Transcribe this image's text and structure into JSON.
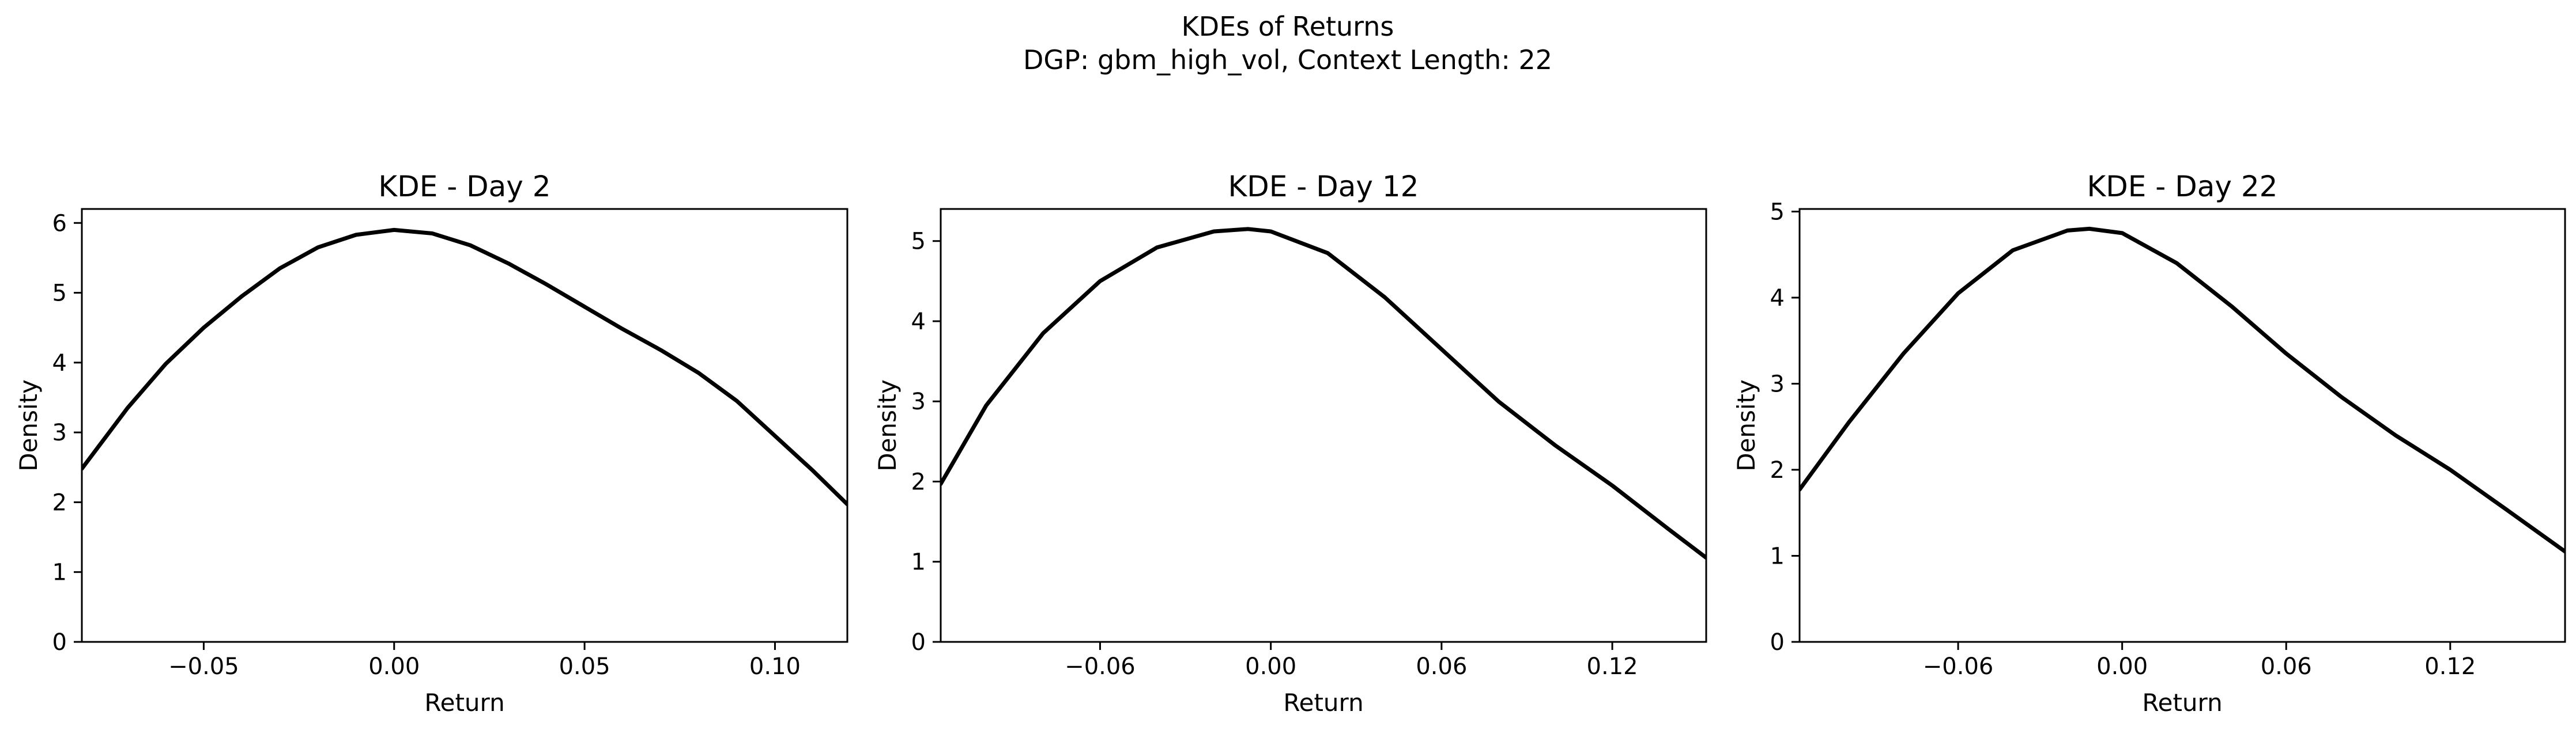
{
  "figure": {
    "suptitle_line1": "KDEs of Returns",
    "suptitle_line2": "DGP: gbm_high_vol, Context Length: 22"
  },
  "chart_data": [
    {
      "type": "line",
      "title": "KDE - Day 2",
      "xlabel": "Return",
      "ylabel": "Density",
      "xlim": [
        -0.082,
        0.119
      ],
      "ylim": [
        0,
        6.2
      ],
      "xticks": [
        -0.05,
        0.0,
        0.05,
        0.1
      ],
      "xtick_labels": [
        "−0.05",
        "0.00",
        "0.05",
        "0.10"
      ],
      "yticks": [
        0,
        1,
        2,
        3,
        4,
        5,
        6
      ],
      "ytick_labels": [
        "0",
        "1",
        "2",
        "3",
        "4",
        "5",
        "6"
      ],
      "grid": false,
      "line_color": "#000000",
      "series": [
        {
          "x": [
            -0.082,
            -0.07,
            -0.06,
            -0.05,
            -0.04,
            -0.03,
            -0.02,
            -0.01,
            0.0,
            0.01,
            0.02,
            0.03,
            0.04,
            0.05,
            0.06,
            0.07,
            0.08,
            0.09,
            0.1,
            0.11,
            0.119
          ],
          "y": [
            2.48,
            3.35,
            3.98,
            4.5,
            4.95,
            5.35,
            5.65,
            5.83,
            5.9,
            5.85,
            5.68,
            5.42,
            5.12,
            4.8,
            4.48,
            4.18,
            3.85,
            3.45,
            2.95,
            2.45,
            1.97
          ]
        }
      ]
    },
    {
      "type": "line",
      "title": "KDE - Day 12",
      "xlabel": "Return",
      "ylabel": "Density",
      "xlim": [
        -0.116,
        0.153
      ],
      "ylim": [
        0,
        5.4
      ],
      "xticks": [
        -0.06,
        0.0,
        0.06,
        0.12
      ],
      "xtick_labels": [
        "−0.06",
        "0.00",
        "0.06",
        "0.12"
      ],
      "yticks": [
        0,
        1,
        2,
        3,
        4,
        5
      ],
      "ytick_labels": [
        "0",
        "1",
        "2",
        "3",
        "4",
        "5"
      ],
      "grid": false,
      "line_color": "#000000",
      "series": [
        {
          "x": [
            -0.116,
            -0.1,
            -0.08,
            -0.06,
            -0.04,
            -0.02,
            -0.008,
            0.0,
            0.02,
            0.04,
            0.06,
            0.08,
            0.1,
            0.12,
            0.14,
            0.153
          ],
          "y": [
            1.97,
            2.95,
            3.85,
            4.5,
            4.92,
            5.12,
            5.15,
            5.12,
            4.85,
            4.3,
            3.65,
            3.0,
            2.45,
            1.95,
            1.4,
            1.05
          ]
        }
      ]
    },
    {
      "type": "line",
      "title": "KDE - Day 22",
      "xlabel": "Return",
      "ylabel": "Density",
      "xlim": [
        -0.118,
        0.162
      ],
      "ylim": [
        0,
        5.03
      ],
      "xticks": [
        -0.06,
        0.0,
        0.06,
        0.12
      ],
      "xtick_labels": [
        "−0.06",
        "0.00",
        "0.06",
        "0.12"
      ],
      "yticks": [
        0,
        1,
        2,
        3,
        4,
        5
      ],
      "ytick_labels": [
        "0",
        "1",
        "2",
        "3",
        "4",
        "5"
      ],
      "grid": false,
      "line_color": "#000000",
      "series": [
        {
          "x": [
            -0.118,
            -0.1,
            -0.08,
            -0.06,
            -0.04,
            -0.02,
            -0.012,
            0.0,
            0.02,
            0.04,
            0.06,
            0.08,
            0.1,
            0.12,
            0.14,
            0.162
          ],
          "y": [
            1.77,
            2.55,
            3.35,
            4.05,
            4.55,
            4.78,
            4.8,
            4.75,
            4.4,
            3.9,
            3.35,
            2.85,
            2.4,
            2.0,
            1.55,
            1.05
          ]
        }
      ]
    }
  ]
}
